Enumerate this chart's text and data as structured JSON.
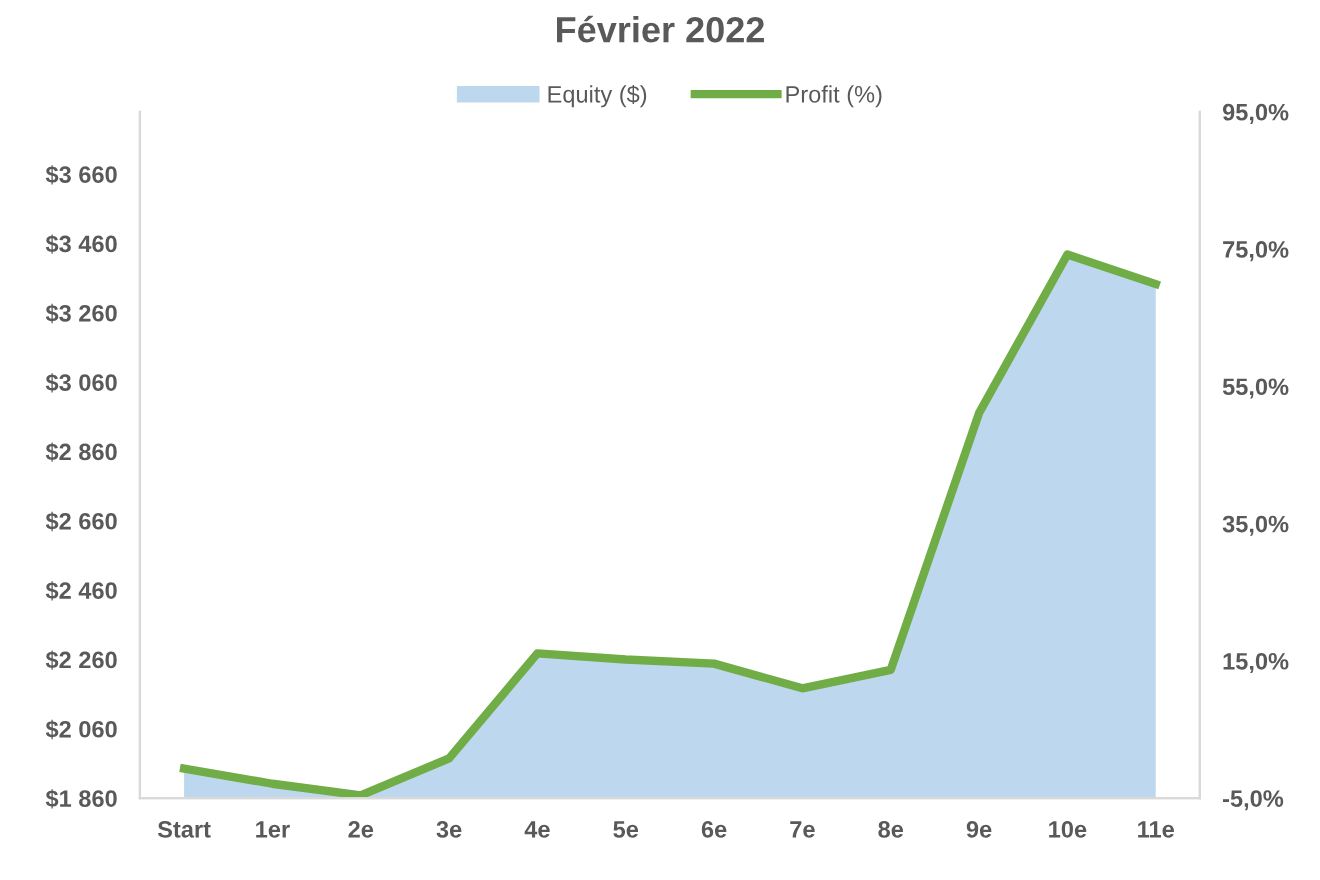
{
  "chart_data": {
    "type": "area",
    "title": "Février 2022",
    "categories": [
      "Start",
      "1er",
      "2e",
      "3e",
      "4e",
      "5e",
      "6e",
      "7e",
      "8e",
      "9e",
      "10e",
      "11e"
    ],
    "series": [
      {
        "name": "Equity ($)",
        "color": "#bdd7ee",
        "values": [
          1950,
          1908,
          1873,
          1979,
          2281,
          2263,
          2252,
          2181,
          2235,
          2972,
          3426,
          3343
        ]
      },
      {
        "name": "Profit (%)",
        "type": "line",
        "axis": "y2",
        "color": "#70ad47",
        "line_style": "solid",
        "values": [
          -0.7,
          -2.9,
          -4.6,
          0.8,
          16.1,
          15.2,
          14.6,
          11.0,
          13.7,
          51.1,
          74.2,
          69.9
        ]
      }
    ],
    "ylim": [
      1860,
      3840
    ],
    "yticks": [
      {
        "value": 1860,
        "label": "$1 860"
      },
      {
        "value": 2060,
        "label": "$2 060"
      },
      {
        "value": 2260,
        "label": "$2 260"
      },
      {
        "value": 2460,
        "label": "$2 460"
      },
      {
        "value": 2660,
        "label": "$2 660"
      },
      {
        "value": 2860,
        "label": "$2 860"
      },
      {
        "value": 3060,
        "label": "$3 060"
      },
      {
        "value": 3260,
        "label": "$3 260"
      },
      {
        "value": 3460,
        "label": "$3 460"
      },
      {
        "value": 3660,
        "label": "$3 660"
      }
    ],
    "y2lim": [
      -5,
      95
    ],
    "y2ticks": [
      {
        "value": -5,
        "label": "-5,0%"
      },
      {
        "value": 15,
        "label": "15,0%"
      },
      {
        "value": 35,
        "label": "35,0%"
      },
      {
        "value": 55,
        "label": "55,0%"
      },
      {
        "value": 75,
        "label": "75,0%"
      },
      {
        "value": 95,
        "label": "95,0%"
      }
    ],
    "grid": false,
    "legend": "top",
    "marker": "none"
  }
}
